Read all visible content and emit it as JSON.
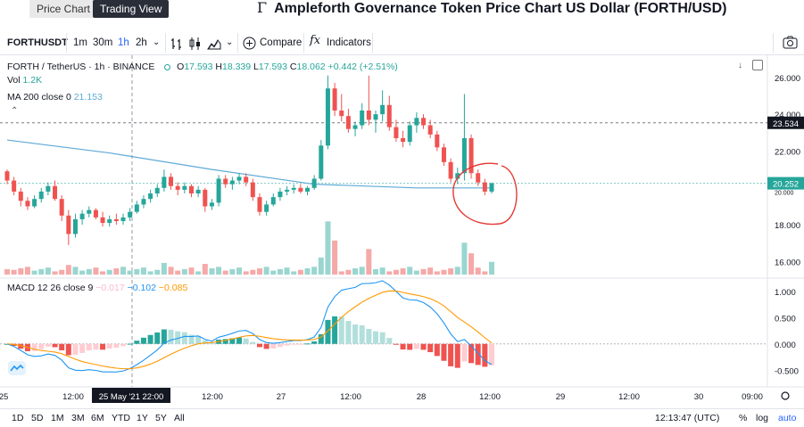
{
  "tabs": {
    "price_chart": "Price Chart",
    "trading_view": "Trading View"
  },
  "page_title": "Ampleforth Governance Token Price Chart US Dollar (FORTH/USD)",
  "toolbar": {
    "symbol": "FORTHUSDT",
    "intervals": [
      "1m",
      "30m",
      "1h",
      "2h"
    ],
    "compare_label": "Compare",
    "indicators_label": "Indicators"
  },
  "legend": {
    "pair": "FORTH / TetherUS · 1h · BINANCE",
    "o_label": "O",
    "o_val": "17.593",
    "h_label": "H",
    "h_val": "18.339",
    "l_label": "L",
    "l_val": "17.593",
    "c_label": "C",
    "c_val": "18.062",
    "change": "+0.442 (+2.51%)",
    "vol_label": "Vol",
    "vol_val": "1.2K",
    "ma_label": "MA 200 close 0",
    "ma_val": "21.153",
    "macd_label": "MACD 12 26 close 9",
    "macd_hist": "−0.017",
    "macd_line": "−0.102",
    "macd_signal": "−0.085"
  },
  "price_axis": {
    "ticks": [
      "26.000",
      "24.000",
      "22.000",
      "18.000",
      "16.000"
    ],
    "tag_top": "23.534",
    "tag_current": "20.252",
    "tag_partial": "20.000"
  },
  "macd_axis": {
    "ticks": [
      "1.000",
      "0.500",
      "0.000",
      "-0.500"
    ]
  },
  "time_axis": {
    "labels": [
      "25",
      "12:00",
      "12:00",
      "27",
      "12:00",
      "28",
      "12:00",
      "29",
      "12:00",
      "30",
      "09:00"
    ],
    "cursor_label": "25 May '21   22:00"
  },
  "ranges": [
    "1D",
    "5D",
    "1M",
    "3M",
    "6M",
    "YTD",
    "1Y",
    "5Y",
    "All"
  ],
  "status": {
    "time": "12:13:47 (UTC)",
    "percent": "%",
    "log": "log",
    "auto": "auto"
  },
  "colors": {
    "up": "#26a69a",
    "down": "#ef5350",
    "ma": "#5eaad6",
    "macd": "#2196f3",
    "signal": "#ff9800",
    "annotation": "#e53935"
  },
  "chart_data": {
    "type": "candlestick",
    "title": "",
    "symbol": "FORTH / TetherUS",
    "interval": "1h",
    "exchange": "BINANCE",
    "ylim": [
      15.2,
      27.2
    ],
    "candles": [
      {
        "o": 20.9,
        "h": 21.0,
        "l": 20.2,
        "c": 20.4
      },
      {
        "o": 20.4,
        "h": 20.6,
        "l": 19.6,
        "c": 19.8
      },
      {
        "o": 19.8,
        "h": 20.0,
        "l": 19.0,
        "c": 19.3
      },
      {
        "o": 19.3,
        "h": 19.5,
        "l": 18.8,
        "c": 19.0
      },
      {
        "o": 19.0,
        "h": 19.6,
        "l": 18.9,
        "c": 19.4
      },
      {
        "o": 19.4,
        "h": 20.0,
        "l": 19.2,
        "c": 19.8
      },
      {
        "o": 19.8,
        "h": 20.3,
        "l": 19.6,
        "c": 20.1
      },
      {
        "o": 20.1,
        "h": 20.4,
        "l": 19.3,
        "c": 19.4
      },
      {
        "o": 19.4,
        "h": 19.6,
        "l": 18.2,
        "c": 18.5
      },
      {
        "o": 18.5,
        "h": 18.8,
        "l": 16.9,
        "c": 17.5
      },
      {
        "o": 17.5,
        "h": 18.6,
        "l": 17.3,
        "c": 18.3
      },
      {
        "o": 18.3,
        "h": 18.8,
        "l": 18.0,
        "c": 18.6
      },
      {
        "o": 18.6,
        "h": 19.0,
        "l": 18.4,
        "c": 18.8
      },
      {
        "o": 18.8,
        "h": 18.9,
        "l": 18.3,
        "c": 18.4
      },
      {
        "o": 18.4,
        "h": 18.7,
        "l": 17.9,
        "c": 18.1
      },
      {
        "o": 18.1,
        "h": 18.5,
        "l": 17.9,
        "c": 18.3
      },
      {
        "o": 18.3,
        "h": 18.6,
        "l": 18.0,
        "c": 18.2
      },
      {
        "o": 18.2,
        "h": 18.6,
        "l": 18.0,
        "c": 18.4
      },
      {
        "o": 18.4,
        "h": 18.9,
        "l": 18.2,
        "c": 18.7
      },
      {
        "o": 18.7,
        "h": 19.3,
        "l": 18.6,
        "c": 19.1
      },
      {
        "o": 19.1,
        "h": 19.6,
        "l": 18.9,
        "c": 19.4
      },
      {
        "o": 19.4,
        "h": 19.9,
        "l": 19.2,
        "c": 19.7
      },
      {
        "o": 19.7,
        "h": 20.2,
        "l": 19.5,
        "c": 20.0
      },
      {
        "o": 20.0,
        "h": 21.0,
        "l": 19.8,
        "c": 20.6
      },
      {
        "o": 20.6,
        "h": 20.8,
        "l": 19.9,
        "c": 20.1
      },
      {
        "o": 20.1,
        "h": 20.3,
        "l": 19.6,
        "c": 19.9
      },
      {
        "o": 19.9,
        "h": 20.3,
        "l": 19.7,
        "c": 20.1
      },
      {
        "o": 20.1,
        "h": 20.2,
        "l": 19.5,
        "c": 19.7
      },
      {
        "o": 19.7,
        "h": 20.1,
        "l": 19.5,
        "c": 19.9
      },
      {
        "o": 19.9,
        "h": 20.0,
        "l": 18.7,
        "c": 19.0
      },
      {
        "o": 19.0,
        "h": 19.4,
        "l": 18.8,
        "c": 19.2
      },
      {
        "o": 19.2,
        "h": 20.7,
        "l": 19.0,
        "c": 20.5
      },
      {
        "o": 20.5,
        "h": 20.7,
        "l": 20.0,
        "c": 20.2
      },
      {
        "o": 20.2,
        "h": 20.6,
        "l": 19.9,
        "c": 20.4
      },
      {
        "o": 20.4,
        "h": 20.8,
        "l": 20.2,
        "c": 20.6
      },
      {
        "o": 20.6,
        "h": 20.8,
        "l": 20.1,
        "c": 20.3
      },
      {
        "o": 20.3,
        "h": 20.5,
        "l": 19.3,
        "c": 19.5
      },
      {
        "o": 19.5,
        "h": 19.7,
        "l": 18.5,
        "c": 18.7
      },
      {
        "o": 18.7,
        "h": 19.3,
        "l": 18.5,
        "c": 19.1
      },
      {
        "o": 19.1,
        "h": 19.7,
        "l": 19.0,
        "c": 19.5
      },
      {
        "o": 19.5,
        "h": 20.0,
        "l": 19.3,
        "c": 19.8
      },
      {
        "o": 19.8,
        "h": 20.1,
        "l": 19.6,
        "c": 19.9
      },
      {
        "o": 19.9,
        "h": 20.2,
        "l": 19.7,
        "c": 20.0
      },
      {
        "o": 20.0,
        "h": 20.2,
        "l": 19.7,
        "c": 19.8
      },
      {
        "o": 19.8,
        "h": 20.1,
        "l": 19.6,
        "c": 20.0
      },
      {
        "o": 20.0,
        "h": 20.7,
        "l": 19.9,
        "c": 20.5
      },
      {
        "o": 20.5,
        "h": 22.6,
        "l": 20.4,
        "c": 22.3
      },
      {
        "o": 22.3,
        "h": 26.1,
        "l": 22.1,
        "c": 25.4
      },
      {
        "o": 25.4,
        "h": 25.7,
        "l": 23.9,
        "c": 24.2
      },
      {
        "o": 24.2,
        "h": 25.1,
        "l": 23.6,
        "c": 23.9
      },
      {
        "o": 23.9,
        "h": 24.3,
        "l": 23.0,
        "c": 23.2
      },
      {
        "o": 23.2,
        "h": 23.6,
        "l": 22.8,
        "c": 23.4
      },
      {
        "o": 23.4,
        "h": 24.6,
        "l": 23.2,
        "c": 24.2
      },
      {
        "o": 24.2,
        "h": 26.1,
        "l": 23.4,
        "c": 23.7
      },
      {
        "o": 23.7,
        "h": 24.2,
        "l": 23.0,
        "c": 24.0
      },
      {
        "o": 24.0,
        "h": 25.3,
        "l": 23.6,
        "c": 24.5
      },
      {
        "o": 24.5,
        "h": 25.0,
        "l": 23.1,
        "c": 23.3
      },
      {
        "o": 23.3,
        "h": 23.7,
        "l": 22.5,
        "c": 22.7
      },
      {
        "o": 22.7,
        "h": 23.1,
        "l": 22.2,
        "c": 22.5
      },
      {
        "o": 22.5,
        "h": 23.6,
        "l": 22.3,
        "c": 23.4
      },
      {
        "o": 23.4,
        "h": 24.1,
        "l": 23.0,
        "c": 23.8
      },
      {
        "o": 23.8,
        "h": 24.0,
        "l": 23.2,
        "c": 23.4
      },
      {
        "o": 23.4,
        "h": 23.7,
        "l": 22.7,
        "c": 22.9
      },
      {
        "o": 22.9,
        "h": 23.1,
        "l": 22.0,
        "c": 22.2
      },
      {
        "o": 22.2,
        "h": 22.4,
        "l": 21.2,
        "c": 21.4
      },
      {
        "o": 21.4,
        "h": 21.6,
        "l": 20.3,
        "c": 20.5
      },
      {
        "o": 20.5,
        "h": 21.1,
        "l": 20.2,
        "c": 20.8
      },
      {
        "o": 20.8,
        "h": 25.1,
        "l": 20.4,
        "c": 22.7
      },
      {
        "o": 22.7,
        "h": 22.9,
        "l": 20.5,
        "c": 20.8
      },
      {
        "o": 20.8,
        "h": 21.0,
        "l": 20.1,
        "c": 20.3
      },
      {
        "o": 20.3,
        "h": 20.5,
        "l": 19.6,
        "c": 19.8
      },
      {
        "o": 19.8,
        "h": 20.3,
        "l": 19.7,
        "c": 20.252
      }
    ],
    "ma200": [
      {
        "i": 0,
        "v": 22.6
      },
      {
        "i": 15,
        "v": 21.9
      },
      {
        "i": 30,
        "v": 21.0
      },
      {
        "i": 45,
        "v": 20.2
      },
      {
        "i": 60,
        "v": 20.0
      },
      {
        "i": 71,
        "v": 20.0
      }
    ],
    "volume": [
      {
        "i": 0,
        "v": 0.5
      },
      {
        "i": 9,
        "v": 0.9
      },
      {
        "i": 23,
        "v": 1.1
      },
      {
        "i": 29,
        "v": 1.0
      },
      {
        "i": 46,
        "v": 1.6
      },
      {
        "i": 47,
        "v": 5.0
      },
      {
        "i": 48,
        "v": 3.2
      },
      {
        "i": 53,
        "v": 2.4
      },
      {
        "i": 67,
        "v": 3.0
      },
      {
        "i": 68,
        "v": 2.0
      },
      {
        "i": 71,
        "v": 1.2
      }
    ],
    "macd": {
      "ylim": [
        -0.75,
        1.25
      ],
      "hist_latest": -0.017,
      "macd_latest": -0.102,
      "signal_latest": -0.085
    },
    "time_labels": [
      "25",
      "12:00",
      "12:00",
      "27",
      "12:00",
      "28",
      "12:00",
      "29",
      "12:00",
      "30",
      "09:00"
    ]
  }
}
